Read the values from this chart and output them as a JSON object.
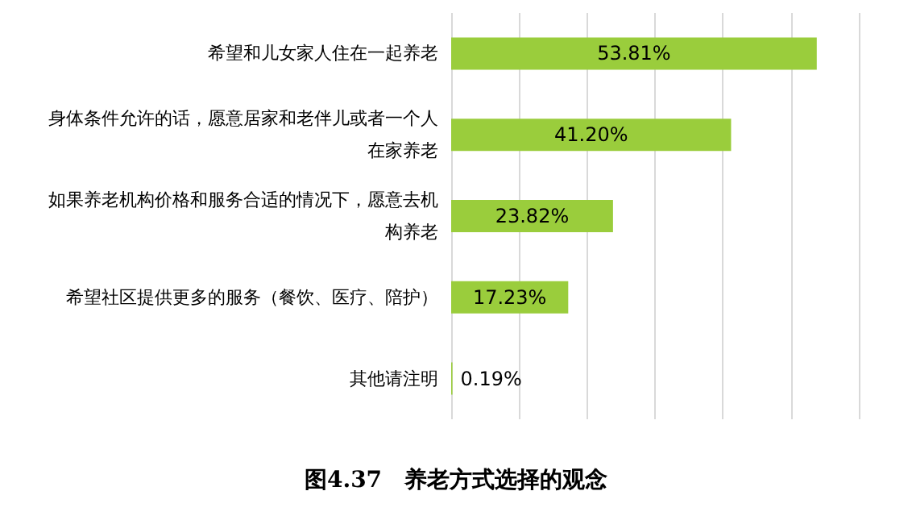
{
  "chart_data": {
    "type": "bar",
    "orientation": "horizontal",
    "title": "图4.37　养老方式选择的观念",
    "categories": [
      "希望和儿女家人住在一起养老",
      "身体条件允许的话，愿意居家和老伴儿或者一个人在家养老",
      "如果养老机构价格和服务合适的情况下，愿意去机构养老",
      "希望社区提供更多的服务（餐饮、医疗、陪护）",
      "其他请注明"
    ],
    "values": [
      53.81,
      41.2,
      23.82,
      17.23,
      0.19
    ],
    "value_labels": [
      "53.81%",
      "41.20%",
      "23.82%",
      "17.23%",
      "0.19%"
    ],
    "color": "#9acd3c",
    "xlim": [
      0,
      60
    ],
    "xticks": [
      {
        "value": 0,
        "label": null
      },
      {
        "value": 10,
        "label": null
      },
      {
        "value": 20,
        "label": null
      },
      {
        "value": 30,
        "label": null
      },
      {
        "value": 40,
        "label": null
      },
      {
        "value": 50,
        "label": null
      },
      {
        "value": 60,
        "label": null
      }
    ],
    "grid": "x",
    "tick_labels": "y"
  }
}
